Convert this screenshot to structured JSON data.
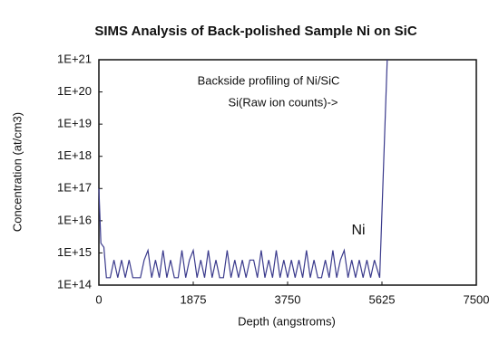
{
  "chart_data": {
    "type": "line",
    "title": "SIMS Analysis of Back-polished Sample Ni on SiC",
    "x_label": "Depth (angstroms)",
    "y_label": "Concentration (at/cm3)",
    "yscale": "log",
    "annotations": [
      {
        "text": "Backside profiling of Ni/SiC",
        "color": "#111111"
      },
      {
        "text": "Si(Raw ion counts)->",
        "color": "#2e8b2e"
      }
    ],
    "x": [
      0,
      40,
      100,
      150,
      225,
      300,
      375,
      450,
      525,
      600,
      675,
      750,
      825,
      900,
      975,
      1050,
      1125,
      1200,
      1275,
      1350,
      1425,
      1500,
      1575,
      1650,
      1725,
      1800,
      1875,
      1950,
      2025,
      2100,
      2175,
      2250,
      2325,
      2400,
      2475,
      2550,
      2625,
      2700,
      2775,
      2850,
      2925,
      3000,
      3075,
      3150,
      3225,
      3300,
      3375,
      3450,
      3525,
      3600,
      3675,
      3750,
      3825,
      3900,
      3975,
      4050,
      4125,
      4200,
      4275,
      4350,
      4425,
      4500,
      4575,
      4650,
      4725,
      4800,
      4875,
      4950,
      5025,
      5100,
      5175,
      5250,
      5325,
      5400,
      5475,
      5580,
      5730
    ],
    "series": [
      {
        "name": "Ni",
        "color": "#3a3a8c",
        "values": [
          1e+17,
          2000000000000000.0,
          1500000000000000.0,
          170000000000000.0,
          170000000000000.0,
          600000000000000.0,
          170000000000000.0,
          600000000000000.0,
          170000000000000.0,
          600000000000000.0,
          170000000000000.0,
          170000000000000.0,
          170000000000000.0,
          600000000000000.0,
          1200000000000000.0,
          170000000000000.0,
          600000000000000.0,
          170000000000000.0,
          1200000000000000.0,
          170000000000000.0,
          600000000000000.0,
          170000000000000.0,
          170000000000000.0,
          1200000000000000.0,
          170000000000000.0,
          600000000000000.0,
          1200000000000000.0,
          170000000000000.0,
          600000000000000.0,
          170000000000000.0,
          1200000000000000.0,
          170000000000000.0,
          600000000000000.0,
          170000000000000.0,
          170000000000000.0,
          1200000000000000.0,
          170000000000000.0,
          600000000000000.0,
          170000000000000.0,
          600000000000000.0,
          170000000000000.0,
          600000000000000.0,
          600000000000000.0,
          170000000000000.0,
          1200000000000000.0,
          170000000000000.0,
          600000000000000.0,
          170000000000000.0,
          1200000000000000.0,
          170000000000000.0,
          600000000000000.0,
          170000000000000.0,
          600000000000000.0,
          170000000000000.0,
          600000000000000.0,
          170000000000000.0,
          1200000000000000.0,
          170000000000000.0,
          600000000000000.0,
          170000000000000.0,
          170000000000000.0,
          600000000000000.0,
          170000000000000.0,
          1200000000000000.0,
          170000000000000.0,
          600000000000000.0,
          1200000000000000.0,
          170000000000000.0,
          600000000000000.0,
          170000000000000.0,
          600000000000000.0,
          170000000000000.0,
          600000000000000.0,
          170000000000000.0,
          600000000000000.0,
          170000000000000.0,
          1e+21
        ]
      }
    ],
    "xlim": [
      0,
      7500
    ],
    "xticks": [
      0,
      1875,
      3750,
      5625,
      7500
    ],
    "ylim": [
      100000000000000.0,
      1e+21
    ],
    "yticks": [
      {
        "value": 100000000000000.0,
        "label": "1E+14"
      },
      {
        "value": 1000000000000000.0,
        "label": "1E+15"
      },
      {
        "value": 1e+16,
        "label": "1E+16"
      },
      {
        "value": 1e+17,
        "label": "1E+17"
      },
      {
        "value": 1e+18,
        "label": "1E+18"
      },
      {
        "value": 1e+19,
        "label": "1E+19"
      },
      {
        "value": 1e+20,
        "label": "1E+20"
      },
      {
        "value": 1e+21,
        "label": "1E+21"
      }
    ]
  }
}
